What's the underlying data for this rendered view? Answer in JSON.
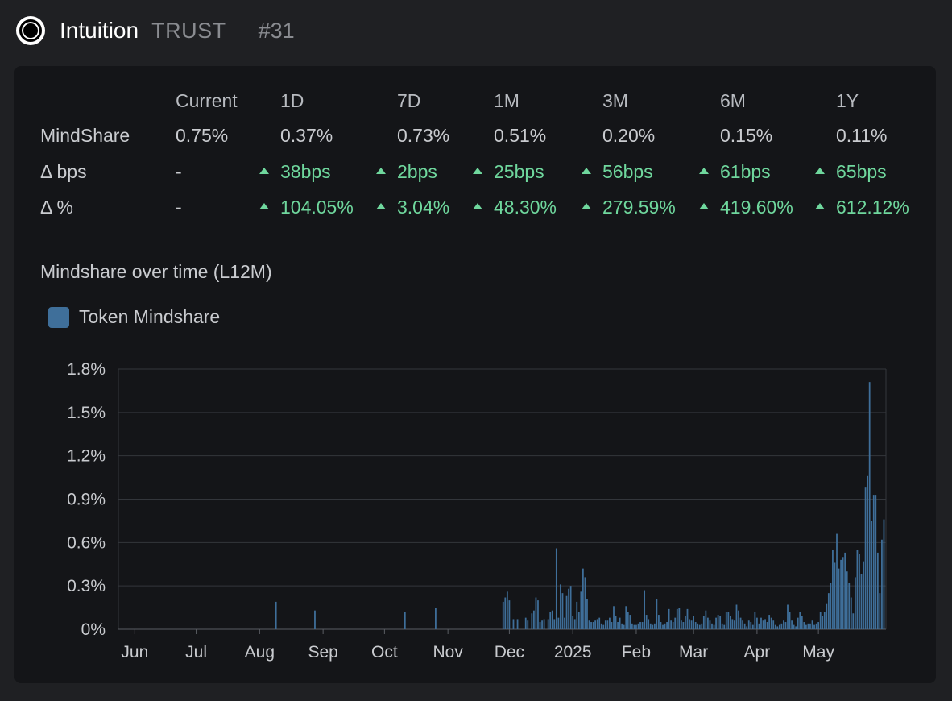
{
  "header": {
    "name": "Intuition",
    "ticker": "TRUST",
    "rank": "#31"
  },
  "stats": {
    "columns": [
      "Current",
      "1D",
      "7D",
      "1M",
      "3M",
      "6M",
      "1Y"
    ],
    "rows": [
      {
        "label": "MindShare",
        "values": [
          "0.75%",
          "0.37%",
          "0.73%",
          "0.51%",
          "0.20%",
          "0.15%",
          "0.11%"
        ],
        "up": [
          false,
          false,
          false,
          false,
          false,
          false,
          false
        ]
      },
      {
        "label": "Δ bps",
        "values": [
          "-",
          "38bps",
          "2bps",
          "25bps",
          "56bps",
          "61bps",
          "65bps"
        ],
        "up": [
          false,
          true,
          true,
          true,
          true,
          true,
          true
        ]
      },
      {
        "label": "Δ %",
        "values": [
          "-",
          "104.05%",
          "3.04%",
          "48.30%",
          "279.59%",
          "419.60%",
          "612.12%"
        ],
        "up": [
          false,
          true,
          true,
          true,
          true,
          true,
          true
        ]
      }
    ]
  },
  "chart_title": "Mindshare over time (L12M)",
  "colors": {
    "bar": "#3f6f9a",
    "grid": "#33363b",
    "up": "#6fd79d"
  },
  "chart_data": {
    "type": "bar",
    "title": "",
    "legend": [
      "Token Mindshare"
    ],
    "legend_position": "top-left",
    "ylim": [
      0,
      1.8
    ],
    "yticks": [
      "0%",
      "0.3%",
      "0.6%",
      "0.9%",
      "1.2%",
      "1.5%",
      "1.8%"
    ],
    "x_range_days": [
      0,
      356
    ],
    "xticks": [
      {
        "label": "Jun",
        "day": 8
      },
      {
        "label": "Jul",
        "day": 38
      },
      {
        "label": "Aug",
        "day": 69
      },
      {
        "label": "Sep",
        "day": 100
      },
      {
        "label": "Oct",
        "day": 130
      },
      {
        "label": "Nov",
        "day": 161
      },
      {
        "label": "Dec",
        "day": 191
      },
      {
        "label": "2025",
        "day": 222
      },
      {
        "label": "Feb",
        "day": 253
      },
      {
        "label": "Mar",
        "day": 281
      },
      {
        "label": "Apr",
        "day": 312
      },
      {
        "label": "May",
        "day": 342
      }
    ],
    "series": [
      {
        "name": "Token Mindshare",
        "points": [
          [
            77,
            0.19
          ],
          [
            96,
            0.13
          ],
          [
            140,
            0.12
          ],
          [
            155,
            0.15
          ],
          [
            188,
            0.19
          ],
          [
            189,
            0.22
          ],
          [
            190,
            0.26
          ],
          [
            191,
            0.2
          ],
          [
            193,
            0.07
          ],
          [
            195,
            0.07
          ],
          [
            199,
            0.08
          ],
          [
            200,
            0.06
          ],
          [
            202,
            0.11
          ],
          [
            203,
            0.13
          ],
          [
            204,
            0.22
          ],
          [
            205,
            0.2
          ],
          [
            206,
            0.05
          ],
          [
            207,
            0.06
          ],
          [
            208,
            0.07
          ],
          [
            210,
            0.07
          ],
          [
            211,
            0.12
          ],
          [
            212,
            0.13
          ],
          [
            213,
            0.07
          ],
          [
            214,
            0.56
          ],
          [
            215,
            0.08
          ],
          [
            216,
            0.31
          ],
          [
            217,
            0.25
          ],
          [
            218,
            0.08
          ],
          [
            219,
            0.23
          ],
          [
            220,
            0.28
          ],
          [
            221,
            0.3
          ],
          [
            222,
            0.09
          ],
          [
            223,
            0.07
          ],
          [
            224,
            0.19
          ],
          [
            225,
            0.12
          ],
          [
            226,
            0.26
          ],
          [
            227,
            0.42
          ],
          [
            228,
            0.36
          ],
          [
            229,
            0.21
          ],
          [
            230,
            0.06
          ],
          [
            231,
            0.05
          ],
          [
            232,
            0.05
          ],
          [
            233,
            0.06
          ],
          [
            234,
            0.07
          ],
          [
            235,
            0.08
          ],
          [
            236,
            0.04
          ],
          [
            237,
            0.03
          ],
          [
            238,
            0.06
          ],
          [
            239,
            0.06
          ],
          [
            240,
            0.08
          ],
          [
            241,
            0.05
          ],
          [
            242,
            0.16
          ],
          [
            243,
            0.09
          ],
          [
            244,
            0.05
          ],
          [
            245,
            0.08
          ],
          [
            246,
            0.04
          ],
          [
            247,
            0.03
          ],
          [
            248,
            0.16
          ],
          [
            249,
            0.12
          ],
          [
            250,
            0.1
          ],
          [
            251,
            0.04
          ],
          [
            252,
            0.03
          ],
          [
            253,
            0.03
          ],
          [
            254,
            0.04
          ],
          [
            255,
            0.05
          ],
          [
            256,
            0.05
          ],
          [
            257,
            0.27
          ],
          [
            258,
            0.1
          ],
          [
            259,
            0.07
          ],
          [
            260,
            0.04
          ],
          [
            261,
            0.03
          ],
          [
            262,
            0.04
          ],
          [
            263,
            0.21
          ],
          [
            264,
            0.1
          ],
          [
            265,
            0.05
          ],
          [
            266,
            0.03
          ],
          [
            267,
            0.04
          ],
          [
            268,
            0.05
          ],
          [
            269,
            0.14
          ],
          [
            270,
            0.06
          ],
          [
            271,
            0.05
          ],
          [
            272,
            0.08
          ],
          [
            273,
            0.14
          ],
          [
            274,
            0.15
          ],
          [
            275,
            0.06
          ],
          [
            276,
            0.05
          ],
          [
            277,
            0.09
          ],
          [
            278,
            0.14
          ],
          [
            279,
            0.07
          ],
          [
            280,
            0.06
          ],
          [
            281,
            0.09
          ],
          [
            282,
            0.05
          ],
          [
            283,
            0.04
          ],
          [
            284,
            0.03
          ],
          [
            285,
            0.04
          ],
          [
            286,
            0.09
          ],
          [
            287,
            0.13
          ],
          [
            288,
            0.08
          ],
          [
            289,
            0.06
          ],
          [
            290,
            0.04
          ],
          [
            291,
            0.03
          ],
          [
            292,
            0.08
          ],
          [
            293,
            0.1
          ],
          [
            294,
            0.09
          ],
          [
            295,
            0.04
          ],
          [
            296,
            0.03
          ],
          [
            297,
            0.12
          ],
          [
            298,
            0.12
          ],
          [
            299,
            0.09
          ],
          [
            300,
            0.07
          ],
          [
            301,
            0.06
          ],
          [
            302,
            0.17
          ],
          [
            303,
            0.13
          ],
          [
            304,
            0.08
          ],
          [
            305,
            0.06
          ],
          [
            306,
            0.04
          ],
          [
            307,
            0.02
          ],
          [
            308,
            0.06
          ],
          [
            309,
            0.05
          ],
          [
            310,
            0.03
          ],
          [
            311,
            0.12
          ],
          [
            312,
            0.08
          ],
          [
            313,
            0.04
          ],
          [
            314,
            0.08
          ],
          [
            315,
            0.06
          ],
          [
            316,
            0.07
          ],
          [
            317,
            0.05
          ],
          [
            318,
            0.1
          ],
          [
            319,
            0.08
          ],
          [
            320,
            0.06
          ],
          [
            321,
            0.03
          ],
          [
            322,
            0.02
          ],
          [
            323,
            0.03
          ],
          [
            324,
            0.04
          ],
          [
            325,
            0.06
          ],
          [
            326,
            0.05
          ],
          [
            327,
            0.17
          ],
          [
            328,
            0.12
          ],
          [
            329,
            0.06
          ],
          [
            330,
            0.03
          ],
          [
            331,
            0.02
          ],
          [
            332,
            0.08
          ],
          [
            333,
            0.12
          ],
          [
            334,
            0.09
          ],
          [
            335,
            0.05
          ],
          [
            336,
            0.03
          ],
          [
            337,
            0.04
          ],
          [
            338,
            0.04
          ],
          [
            339,
            0.06
          ],
          [
            340,
            0.03
          ],
          [
            341,
            0.04
          ],
          [
            342,
            0.05
          ],
          [
            343,
            0.12
          ],
          [
            344,
            0.09
          ],
          [
            345,
            0.12
          ],
          [
            346,
            0.18
          ],
          [
            347,
            0.25
          ],
          [
            348,
            0.32
          ],
          [
            349,
            0.55
          ],
          [
            350,
            0.46
          ],
          [
            351,
            0.66
          ],
          [
            352,
            0.42
          ],
          [
            353,
            0.48
          ],
          [
            354,
            0.5
          ],
          [
            355,
            0.53
          ],
          [
            356,
            0.4
          ],
          [
            357,
            0.32
          ],
          [
            358,
            0.22
          ],
          [
            359,
            0.11
          ],
          [
            360,
            0.36
          ],
          [
            361,
            0.55
          ],
          [
            362,
            0.52
          ],
          [
            363,
            0.38
          ],
          [
            364,
            0.47
          ],
          [
            365,
            0.98
          ],
          [
            366,
            1.06
          ],
          [
            367,
            1.71
          ],
          [
            368,
            0.75
          ],
          [
            369,
            0.93
          ],
          [
            370,
            0.93
          ],
          [
            371,
            0.53
          ],
          [
            372,
            0.25
          ],
          [
            373,
            0.62
          ],
          [
            374,
            0.76
          ]
        ]
      }
    ]
  }
}
